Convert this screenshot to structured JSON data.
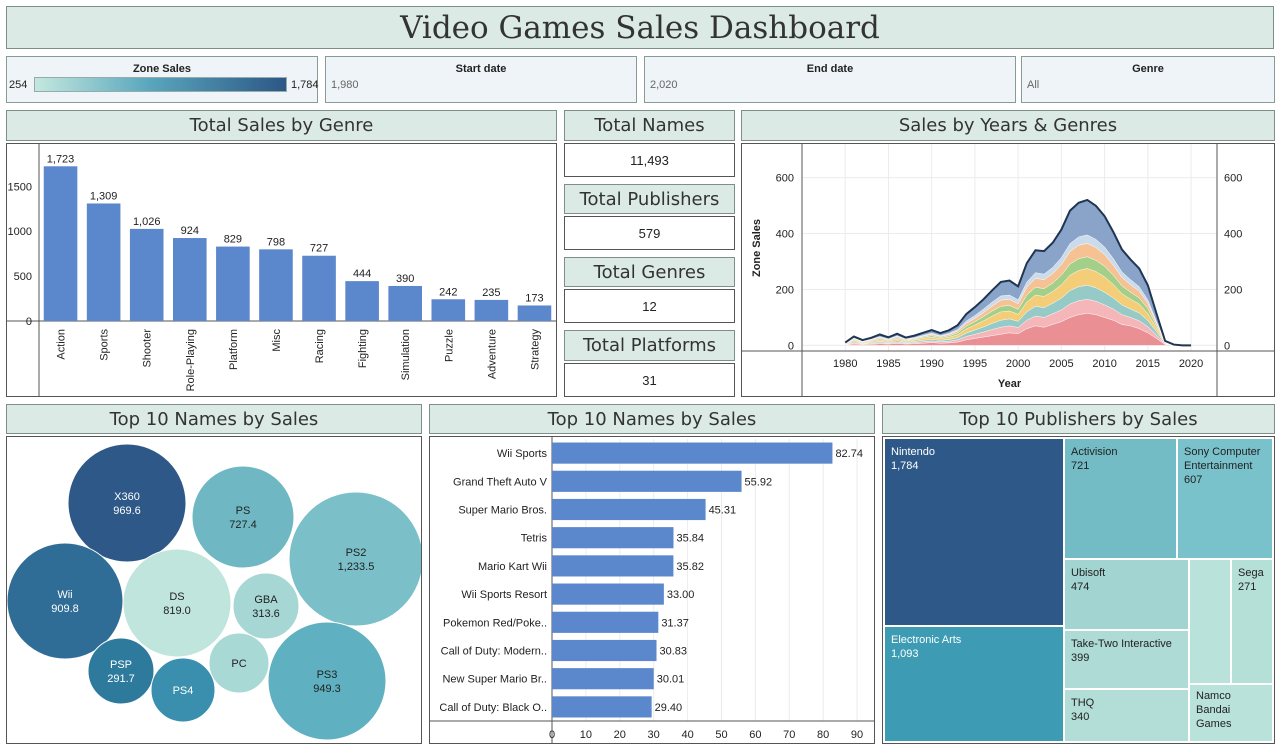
{
  "title": "Video Games Sales Dashboard",
  "filters": {
    "zone_sales": {
      "label": "Zone Sales",
      "min": "254",
      "max": "1,784"
    },
    "start_date": {
      "label": "Start date",
      "value": "1,980"
    },
    "end_date": {
      "label": "End date",
      "value": "2,020"
    },
    "genre": {
      "label": "Genre",
      "value": "All"
    }
  },
  "kpis": [
    {
      "label": "Total Names",
      "value": "11,493"
    },
    {
      "label": "Total Publishers",
      "value": "579"
    },
    {
      "label": "Total Genres",
      "value": "12"
    },
    {
      "label": "Total Platforms",
      "value": "31"
    }
  ],
  "panels": {
    "genre": "Total Sales by Genre",
    "years": "Sales by Years & Genres",
    "bubbles": "Top 10 Names by Sales",
    "names": "Top 10 Names by Sales",
    "publishers": "Top 10 Publishers by Sales"
  },
  "colors": {
    "bar": "#5b87cc",
    "header_bg": "#dbeae5",
    "filter_bg": "#eef4f7",
    "area_outline": "#1f3552"
  },
  "chart_data": [
    {
      "type": "bar",
      "title": "Total Sales by Genre",
      "categories": [
        "Action",
        "Sports",
        "Shooter",
        "Role-Playing",
        "Platform",
        "Misc",
        "Racing",
        "Fighting",
        "Simulation",
        "Puzzle",
        "Adventure",
        "Strategy"
      ],
      "values": [
        1723,
        1309,
        1026,
        924,
        829,
        798,
        727,
        444,
        390,
        242,
        235,
        173
      ],
      "value_labels": [
        "1,723",
        "1,309",
        "1,026",
        "924",
        "829",
        "798",
        "727",
        "444",
        "390",
        "242",
        "235",
        "173"
      ],
      "yticks": [
        0,
        500,
        1000,
        1500
      ],
      "ylim": [
        0,
        1860
      ]
    },
    {
      "type": "area",
      "title": "Sales by Years & Genres",
      "xlabel": "Year",
      "ylabel": "Zone Sales",
      "xlim": [
        1975,
        2023
      ],
      "ylim": [
        -20,
        720
      ],
      "xticks": [
        1980,
        1985,
        1990,
        1995,
        2000,
        2005,
        2010,
        2015,
        2020
      ],
      "yticks": [
        0,
        200,
        400,
        600
      ],
      "x": [
        1980,
        1981,
        1982,
        1983,
        1984,
        1985,
        1986,
        1987,
        1988,
        1989,
        1990,
        1991,
        1992,
        1993,
        1994,
        1995,
        1996,
        1997,
        1998,
        1999,
        2000,
        2001,
        2002,
        2003,
        2004,
        2005,
        2006,
        2007,
        2008,
        2009,
        2010,
        2011,
        2012,
        2013,
        2014,
        2015,
        2016,
        2017,
        2018,
        2019,
        2020
      ],
      "series": [
        {
          "color": "#e8868b",
          "values": [
            1,
            5,
            3,
            4,
            6,
            5,
            7,
            5,
            6,
            8,
            10,
            8,
            9,
            12,
            20,
            25,
            30,
            35,
            40,
            45,
            42,
            60,
            70,
            65,
            75,
            85,
            100,
            110,
            115,
            110,
            100,
            90,
            75,
            70,
            60,
            45,
            25,
            3,
            1,
            0,
            0
          ]
        },
        {
          "color": "#f4b0b3",
          "values": [
            1,
            4,
            2,
            3,
            4,
            3,
            5,
            3,
            4,
            5,
            6,
            5,
            6,
            8,
            12,
            15,
            18,
            22,
            25,
            25,
            22,
            30,
            35,
            35,
            38,
            42,
            48,
            50,
            50,
            48,
            45,
            40,
            35,
            30,
            28,
            22,
            12,
            2,
            0,
            0,
            0
          ]
        },
        {
          "color": "#8cc6c1",
          "values": [
            1,
            4,
            2,
            3,
            4,
            3,
            5,
            3,
            4,
            5,
            6,
            5,
            6,
            8,
            12,
            15,
            18,
            22,
            25,
            25,
            22,
            30,
            35,
            35,
            38,
            42,
            48,
            50,
            50,
            48,
            45,
            40,
            35,
            30,
            28,
            22,
            12,
            2,
            0,
            0,
            0
          ]
        },
        {
          "color": "#f2c96b",
          "values": [
            2,
            5,
            3,
            4,
            6,
            4,
            6,
            4,
            5,
            7,
            8,
            6,
            8,
            10,
            15,
            18,
            22,
            26,
            30,
            28,
            25,
            35,
            40,
            40,
            42,
            48,
            55,
            58,
            60,
            58,
            55,
            48,
            40,
            35,
            32,
            25,
            12,
            2,
            0,
            0,
            0
          ]
        },
        {
          "color": "#9ccb7f",
          "values": [
            1,
            3,
            2,
            3,
            4,
            3,
            4,
            3,
            3,
            4,
            5,
            4,
            5,
            7,
            10,
            12,
            15,
            18,
            20,
            20,
            18,
            25,
            28,
            28,
            30,
            34,
            40,
            42,
            42,
            40,
            38,
            33,
            28,
            25,
            22,
            18,
            9,
            1,
            0,
            0,
            0
          ]
        },
        {
          "color": "#f5bd8a",
          "values": [
            1,
            3,
            2,
            3,
            4,
            3,
            4,
            3,
            3,
            4,
            5,
            4,
            5,
            7,
            10,
            12,
            15,
            18,
            22,
            22,
            20,
            28,
            32,
            32,
            34,
            38,
            45,
            48,
            48,
            46,
            42,
            36,
            30,
            27,
            24,
            19,
            10,
            1,
            0,
            0,
            0
          ]
        },
        {
          "color": "#c5d8ea",
          "values": [
            1,
            2,
            1,
            2,
            3,
            2,
            3,
            2,
            3,
            3,
            4,
            3,
            4,
            5,
            8,
            10,
            12,
            14,
            15,
            15,
            14,
            18,
            20,
            20,
            22,
            25,
            28,
            30,
            30,
            29,
            27,
            24,
            20,
            18,
            16,
            12,
            6,
            1,
            0,
            0,
            0
          ]
        },
        {
          "color": "#7f9bc4",
          "values": [
            2,
            6,
            4,
            5,
            8,
            6,
            8,
            5,
            7,
            9,
            11,
            9,
            11,
            15,
            25,
            30,
            35,
            42,
            50,
            52,
            48,
            68,
            80,
            82,
            88,
            100,
            118,
            122,
            125,
            120,
            110,
            95,
            80,
            72,
            65,
            52,
            28,
            4,
            2,
            0,
            0
          ]
        }
      ]
    },
    {
      "type": "bubble",
      "title": "Top 10 Names by Sales",
      "items": [
        {
          "name": "X360",
          "value": 969.6,
          "label": "969.6"
        },
        {
          "name": "PS",
          "value": 727.4,
          "label": "727.4"
        },
        {
          "name": "PS2",
          "value": 1233.5,
          "label": "1,233.5"
        },
        {
          "name": "Wii",
          "value": 909.8,
          "label": "909.8"
        },
        {
          "name": "DS",
          "value": 819.0,
          "label": "819.0"
        },
        {
          "name": "GBA",
          "value": 313.6,
          "label": "313.6"
        },
        {
          "name": "PSP",
          "value": 291.7,
          "label": "291.7"
        },
        {
          "name": "PS4",
          "value": 278,
          "label": ""
        },
        {
          "name": "PC",
          "value": 258,
          "label": ""
        },
        {
          "name": "PS3",
          "value": 949.3,
          "label": "949.3"
        }
      ]
    },
    {
      "type": "bar",
      "orientation": "horizontal",
      "title": "Top 10 Names by Sales",
      "categories": [
        "Wii Sports",
        "Grand Theft Auto V",
        "Super Mario Bros.",
        "Tetris",
        "Mario Kart Wii",
        "Wii Sports Resort",
        "Pokemon Red/Poke..",
        "Call of Duty: Modern..",
        "New Super Mario Br..",
        "Call of Duty: Black O.."
      ],
      "values": [
        82.74,
        55.92,
        45.31,
        35.84,
        35.82,
        33.0,
        31.37,
        30.83,
        30.01,
        29.4
      ],
      "value_labels": [
        "82.74",
        "55.92",
        "45.31",
        "35.84",
        "35.82",
        "33.00",
        "31.37",
        "30.83",
        "30.01",
        "29.40"
      ],
      "xticks": [
        0,
        10,
        20,
        30,
        40,
        50,
        60,
        70,
        80,
        90
      ],
      "xlim": [
        0,
        95
      ]
    },
    {
      "type": "treemap",
      "title": "Top 10 Publishers by Sales",
      "items": [
        {
          "name": "Nintendo",
          "value": "1,784",
          "color": "#2e5887"
        },
        {
          "name": "Electronic Arts",
          "value": "1,093",
          "color": "#3d9bb4"
        },
        {
          "name": "Activision",
          "value": "721",
          "color": "#73bcc5"
        },
        {
          "name": "Sony Computer Entertainment",
          "value": "607",
          "color": "#7ac2cb"
        },
        {
          "name": "Ubisoft",
          "value": "474",
          "color": "#a2d5d2"
        },
        {
          "name": "Take-Two Interactive",
          "value": "399",
          "color": "#aedbd5"
        },
        {
          "name": "THQ",
          "value": "340",
          "color": "#b3ded7"
        },
        {
          "name": "Sega",
          "value": "271",
          "color": "#b5e0d8"
        },
        {
          "name": "Namco Bandai Games",
          "value": "",
          "color": "#b8e2da"
        },
        {
          "name": "",
          "value": "",
          "color": "#b8e2da"
        }
      ]
    }
  ]
}
